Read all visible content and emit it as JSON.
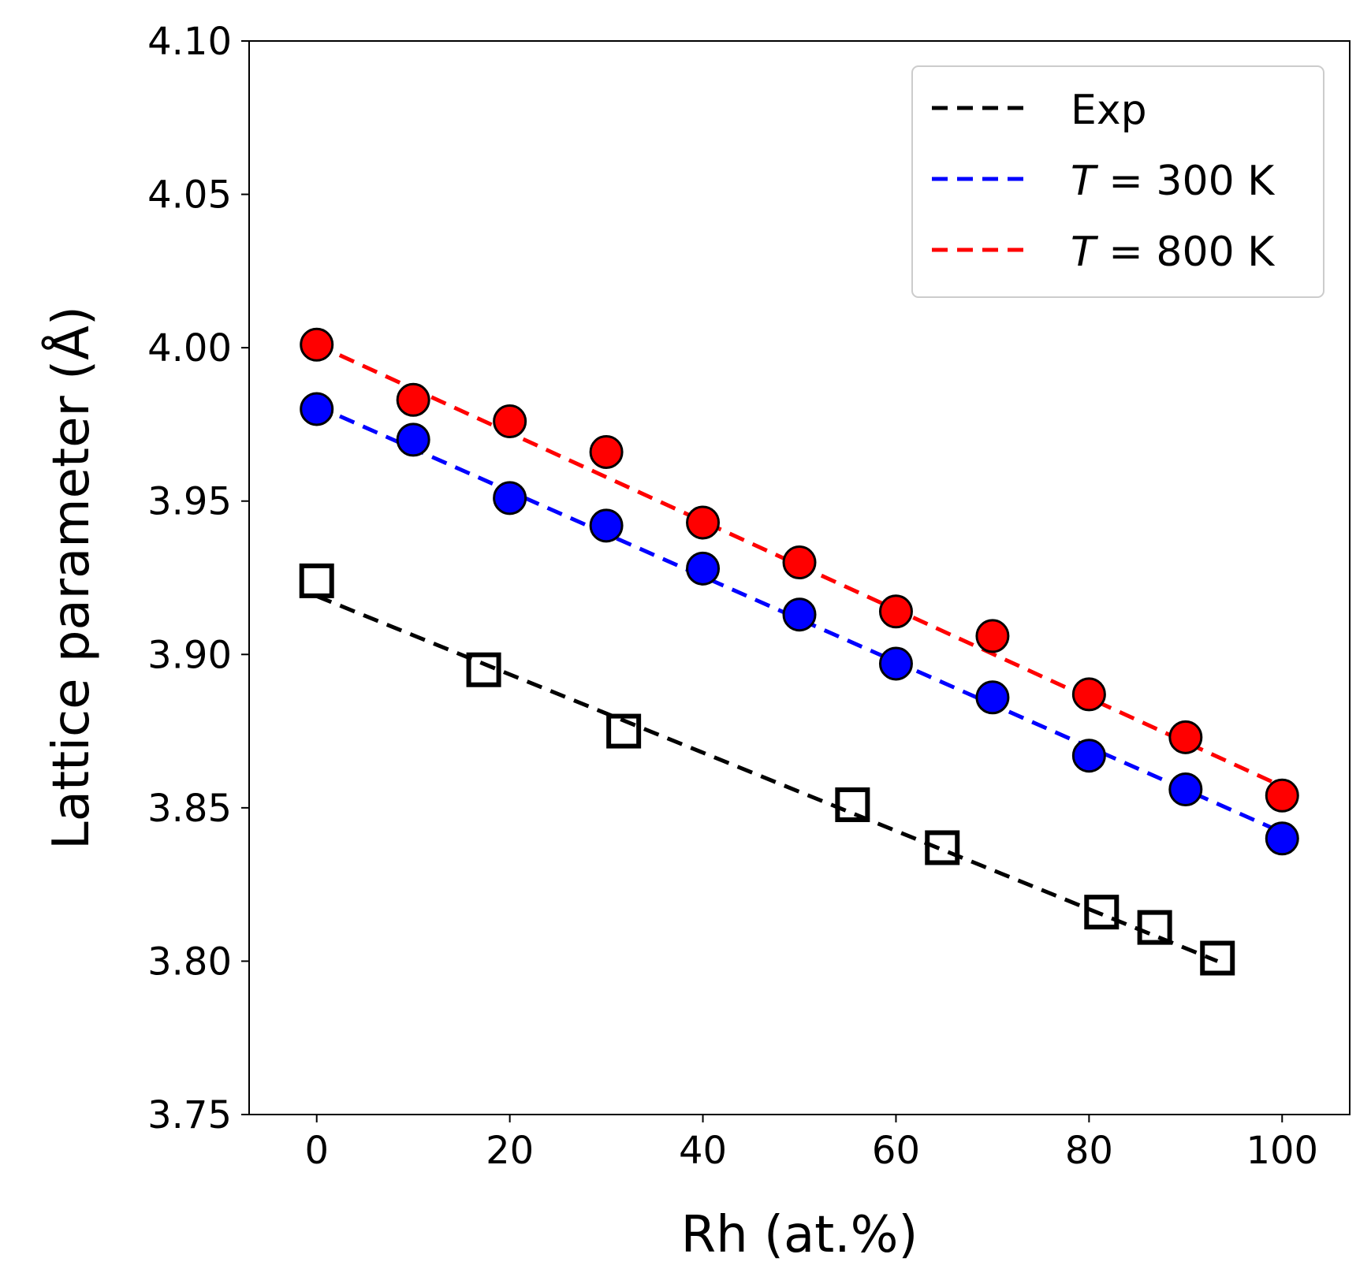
{
  "chart_data": {
    "type": "scatter",
    "title": "",
    "xlabel": "Rh (at.%)",
    "ylabel": "Lattice parameter (Å)",
    "xlim": [
      -7,
      107
    ],
    "ylim": [
      3.75,
      4.1
    ],
    "xticks": [
      0,
      20,
      40,
      60,
      80,
      100
    ],
    "yticks": [
      3.75,
      3.8,
      3.85,
      3.9,
      3.95,
      4.0,
      4.05,
      4.1
    ],
    "ytick_labels": [
      "3.75",
      "3.80",
      "3.85",
      "3.90",
      "3.95",
      "4.00",
      "4.05",
      "4.10"
    ],
    "grid": false,
    "legend_position": "top-right",
    "series": [
      {
        "name": "Exp",
        "legend_main": "Exp",
        "legend_italic": "",
        "color": "#000000",
        "marker": "square-open",
        "x": [
          0,
          17.3,
          31.8,
          55.5,
          64.8,
          81.3,
          86.8,
          93.3
        ],
        "y": [
          3.924,
          3.895,
          3.875,
          3.851,
          3.837,
          3.816,
          3.811,
          3.801
        ],
        "fit": {
          "x": [
            0,
            93.3
          ],
          "y": [
            3.919,
            3.8
          ]
        }
      },
      {
        "name": "T = 300 K",
        "legend_italic": "T",
        "legend_main": " = 300 K",
        "color": "#0000ff",
        "marker": "circle",
        "x": [
          0,
          10,
          20,
          30,
          40,
          50,
          60,
          70,
          80,
          90,
          100
        ],
        "y": [
          3.98,
          3.97,
          3.951,
          3.942,
          3.928,
          3.913,
          3.897,
          3.886,
          3.867,
          3.856,
          3.84
        ],
        "fit": {
          "x": [
            0,
            100
          ],
          "y": [
            3.981,
            3.842
          ]
        }
      },
      {
        "name": "T = 800 K",
        "legend_italic": "T",
        "legend_main": " = 800 K",
        "color": "#ff0000",
        "marker": "circle",
        "x": [
          0,
          10,
          20,
          30,
          40,
          50,
          60,
          70,
          80,
          90,
          100
        ],
        "y": [
          4.001,
          3.983,
          3.976,
          3.966,
          3.943,
          3.93,
          3.914,
          3.906,
          3.887,
          3.873,
          3.854
        ],
        "fit": {
          "x": [
            0,
            100
          ],
          "y": [
            4.001,
            3.857
          ]
        }
      }
    ]
  }
}
